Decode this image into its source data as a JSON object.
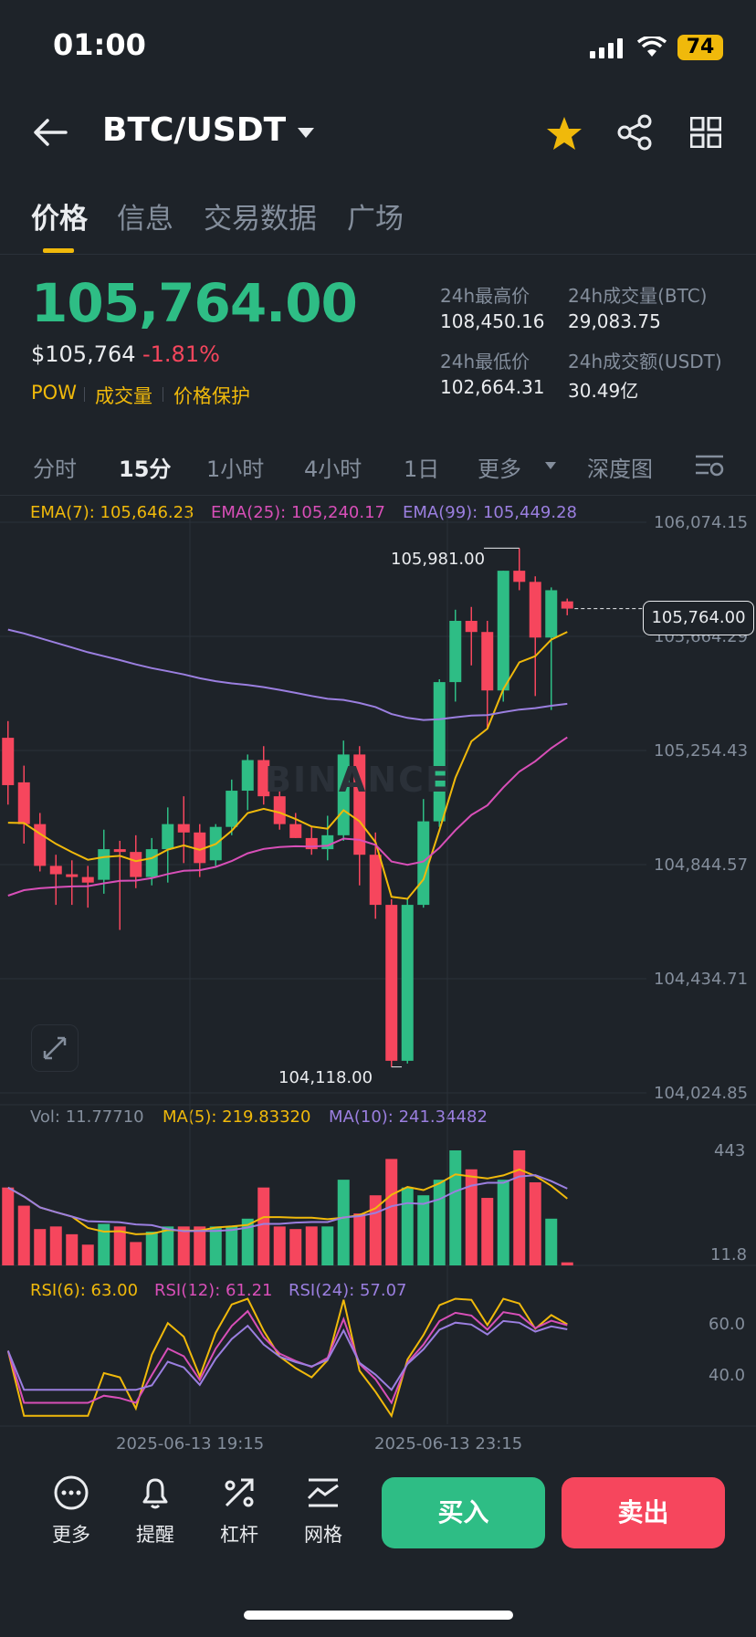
{
  "status": {
    "time": "01:00",
    "battery": "74"
  },
  "header": {
    "pair": "BTC/USDT"
  },
  "tabs": [
    "价格",
    "信息",
    "交易数据",
    "广场"
  ],
  "ticker": {
    "price": "105,764.00",
    "usd_price": "$105,764",
    "change_pct": "-1.81%",
    "tags": [
      "POW",
      "成交量",
      "价格保护"
    ],
    "stats": {
      "high_label": "24h最高价",
      "high": "108,450.16",
      "low_label": "24h最低价",
      "low": "102,664.31",
      "vol_btc_label": "24h成交量(BTC)",
      "vol_btc": "29,083.75",
      "vol_usdt_label": "24h成交额(USDT)",
      "vol_usdt": "30.49亿"
    }
  },
  "intervals": [
    "分时",
    "15分",
    "1小时",
    "4小时",
    "1日",
    "更多",
    "深度图"
  ],
  "indicators": {
    "ema7": "EMA(7): 105,646.23",
    "ema25": "EMA(25): 105,240.17",
    "ema99": "EMA(99): 105,449.28",
    "vol": "Vol: 11.77710",
    "ma5": "MA(5): 219.83320",
    "ma10": "MA(10): 241.34482",
    "rsi6": "RSI(6): 63.00",
    "rsi12": "RSI(12): 61.21",
    "rsi24": "RSI(24): 57.07"
  },
  "colors": {
    "up": "#2ebd85",
    "down": "#f6465d",
    "accent": "#f0b90b",
    "ema7": "#f0b90b",
    "ema25": "#d84fb8",
    "ema99": "#9b7fe0"
  },
  "chart_data": {
    "type": "candlestick",
    "price_axis": [
      "106,074.15",
      "105,664.29",
      "105,254.43",
      "104,844.57",
      "104,434.71",
      "104,024.85"
    ],
    "current_price": "105,764.00",
    "high_marker": "105,981.00",
    "low_marker": "104,118.00",
    "volume_axis": [
      "443",
      "11.8"
    ],
    "rsi_axis": [
      "60.0",
      "40.0"
    ],
    "time_labels": [
      "2025-06-13 19:15",
      "2025-06-13 23:15"
    ],
    "watermark": "BINANCE",
    "candles": [
      {
        "o": 105300,
        "h": 105360,
        "l": 105060,
        "c": 105130
      },
      {
        "o": 105140,
        "h": 105200,
        "l": 104920,
        "c": 104990
      },
      {
        "o": 104990,
        "h": 105030,
        "l": 104820,
        "c": 104840
      },
      {
        "o": 104840,
        "h": 104880,
        "l": 104700,
        "c": 104810
      },
      {
        "o": 104810,
        "h": 104860,
        "l": 104700,
        "c": 104800
      },
      {
        "o": 104800,
        "h": 104840,
        "l": 104690,
        "c": 104780
      },
      {
        "o": 104790,
        "h": 104970,
        "l": 104740,
        "c": 104900
      },
      {
        "o": 104900,
        "h": 104930,
        "l": 104610,
        "c": 104890
      },
      {
        "o": 104890,
        "h": 104950,
        "l": 104760,
        "c": 104800
      },
      {
        "o": 104800,
        "h": 104940,
        "l": 104770,
        "c": 104900
      },
      {
        "o": 104900,
        "h": 105050,
        "l": 104780,
        "c": 104990
      },
      {
        "o": 104990,
        "h": 105090,
        "l": 104850,
        "c": 104960
      },
      {
        "o": 104960,
        "h": 104990,
        "l": 104800,
        "c": 104850
      },
      {
        "o": 104860,
        "h": 104990,
        "l": 104840,
        "c": 104980
      },
      {
        "o": 104980,
        "h": 105150,
        "l": 104950,
        "c": 105110
      },
      {
        "o": 105110,
        "h": 105240,
        "l": 105040,
        "c": 105220
      },
      {
        "o": 105220,
        "h": 105270,
        "l": 105060,
        "c": 105090
      },
      {
        "o": 105090,
        "h": 105120,
        "l": 104970,
        "c": 104990
      },
      {
        "o": 104990,
        "h": 105030,
        "l": 104940,
        "c": 104940
      },
      {
        "o": 104940,
        "h": 104980,
        "l": 104880,
        "c": 104900
      },
      {
        "o": 104900,
        "h": 105020,
        "l": 104860,
        "c": 104950
      },
      {
        "o": 104950,
        "h": 105290,
        "l": 104930,
        "c": 105240
      },
      {
        "o": 105240,
        "h": 105270,
        "l": 104770,
        "c": 104880
      },
      {
        "o": 104880,
        "h": 104960,
        "l": 104650,
        "c": 104700
      },
      {
        "o": 104700,
        "h": 104720,
        "l": 104118,
        "c": 104140
      },
      {
        "o": 104140,
        "h": 104720,
        "l": 104130,
        "c": 104700
      },
      {
        "o": 104700,
        "h": 105080,
        "l": 104690,
        "c": 105000
      },
      {
        "o": 105000,
        "h": 105510,
        "l": 104980,
        "c": 105500
      },
      {
        "o": 105500,
        "h": 105760,
        "l": 105430,
        "c": 105720
      },
      {
        "o": 105720,
        "h": 105770,
        "l": 105560,
        "c": 105680
      },
      {
        "o": 105680,
        "h": 105720,
        "l": 105330,
        "c": 105470
      },
      {
        "o": 105470,
        "h": 105900,
        "l": 105430,
        "c": 105900
      },
      {
        "o": 105900,
        "h": 105981,
        "l": 105830,
        "c": 105860
      },
      {
        "o": 105860,
        "h": 105880,
        "l": 105450,
        "c": 105660
      },
      {
        "o": 105660,
        "h": 105840,
        "l": 105400,
        "c": 105830
      },
      {
        "o": 105790,
        "h": 105800,
        "l": 105740,
        "c": 105764
      }
    ],
    "volumes": [
      300,
      230,
      140,
      150,
      120,
      80,
      160,
      150,
      90,
      130,
      150,
      150,
      150,
      150,
      150,
      180,
      300,
      150,
      140,
      150,
      150,
      330,
      200,
      270,
      410,
      300,
      270,
      330,
      443,
      370,
      260,
      330,
      443,
      320,
      180,
      11.8
    ]
  },
  "toolbar": {
    "more": "更多",
    "alert": "提醒",
    "leverage": "杠杆",
    "grid": "网格",
    "buy": "买入",
    "sell": "卖出"
  }
}
